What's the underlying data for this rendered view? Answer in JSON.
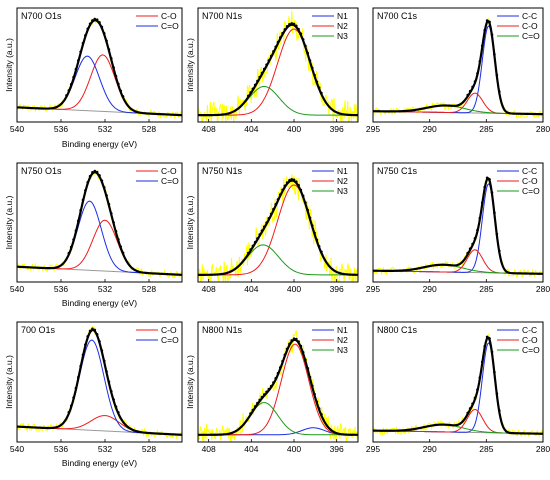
{
  "chart_data": [
    {
      "id": "n700-o1s",
      "type": "line",
      "title": "N700 O1s",
      "xlabel": "Binding energy (eV)",
      "ylabel": "Intensity (a.u.)",
      "xlim": [
        540,
        525
      ],
      "xticks": [
        540,
        536,
        532,
        528
      ],
      "ylim": [
        0,
        1.1
      ],
      "legend": "top-right",
      "kind": "O",
      "peaks": [
        {
          "name": "C-O",
          "color": "#ee1c1c",
          "center": 532.2,
          "fwhm": 2.6,
          "height": 0.58
        },
        {
          "name": "C=O",
          "color": "#1c2ee6",
          "center": 533.6,
          "fwhm": 2.6,
          "height": 0.56
        }
      ],
      "background": {
        "color": "#9a9a9a",
        "start": 0.08,
        "end": 0.0
      }
    },
    {
      "id": "n700-n1s",
      "type": "line",
      "title": "N700 N1s",
      "xlabel": "",
      "ylabel": "Intensity (a.u.)",
      "xlim": [
        409,
        394
      ],
      "xticks": [
        408,
        404,
        400,
        396
      ],
      "ylim": [
        0,
        1.12
      ],
      "legend": "top-right",
      "kind": "N",
      "noise": 0.1,
      "peaks": [
        {
          "name": "N1",
          "color": "#1c2ee6",
          "center": 398.2,
          "fwhm": 2.2,
          "height": 0.0
        },
        {
          "name": "N2",
          "color": "#ee1c1c",
          "center": 400.0,
          "fwhm": 3.6,
          "height": 0.9
        },
        {
          "name": "N3",
          "color": "#1a9a1a",
          "center": 402.8,
          "fwhm": 3.3,
          "height": 0.3
        }
      ],
      "background": {
        "color": "#9a9a9a",
        "start": 0.0,
        "end": 0.0
      }
    },
    {
      "id": "n700-c1s",
      "type": "line",
      "title": "N700 C1s",
      "xlabel": "",
      "ylabel": "",
      "xlim": [
        295,
        280
      ],
      "xticks": [
        295,
        290,
        285,
        280
      ],
      "ylim": [
        0,
        1.08
      ],
      "legend": "top-right",
      "kind": "C",
      "peaks": [
        {
          "name": "C-C",
          "color": "#1c2ee6",
          "center": 284.8,
          "fwhm": 1.3,
          "height": 0.88
        },
        {
          "name": "C-O",
          "color": "#ee1c1c",
          "center": 286.0,
          "fwhm": 1.6,
          "height": 0.2
        },
        {
          "name": "C=O",
          "color": "#1a9a1a",
          "center": 288.6,
          "fwhm": 4.0,
          "height": 0.07
        }
      ],
      "background": {
        "color": "#9a9a9a",
        "start": 0.04,
        "end": 0.01
      }
    },
    {
      "id": "n750-o1s",
      "type": "line",
      "title": "N750 O1s",
      "xlabel": "Binding energy (eV)",
      "ylabel": "Intensity (a.u.)",
      "xlim": [
        540,
        525
      ],
      "xticks": [
        540,
        536,
        532,
        528
      ],
      "ylim": [
        0,
        1.1
      ],
      "legend": "top-right",
      "kind": "O",
      "peaks": [
        {
          "name": "C-O",
          "color": "#ee1c1c",
          "center": 532.0,
          "fwhm": 2.6,
          "height": 0.5
        },
        {
          "name": "C=O",
          "color": "#1c2ee6",
          "center": 533.4,
          "fwhm": 2.5,
          "height": 0.68
        }
      ],
      "background": {
        "color": "#9a9a9a",
        "start": 0.08,
        "end": 0.0
      }
    },
    {
      "id": "n750-n1s",
      "type": "line",
      "title": "N750 N1s",
      "xlabel": "",
      "ylabel": "Intensity (a.u.)",
      "xlim": [
        409,
        394
      ],
      "xticks": [
        408,
        404,
        400,
        396
      ],
      "ylim": [
        0,
        1.12
      ],
      "legend": "top-right",
      "kind": "N",
      "noise": 0.1,
      "peaks": [
        {
          "name": "N1",
          "color": "#1c2ee6",
          "center": 398.2,
          "fwhm": 2.2,
          "height": 0.0
        },
        {
          "name": "N2",
          "color": "#ee1c1c",
          "center": 400.0,
          "fwhm": 3.6,
          "height": 0.9
        },
        {
          "name": "N3",
          "color": "#1a9a1a",
          "center": 402.9,
          "fwhm": 3.4,
          "height": 0.3
        }
      ],
      "background": {
        "color": "#9a9a9a",
        "start": 0.0,
        "end": 0.0
      }
    },
    {
      "id": "n750-c1s",
      "type": "line",
      "title": "N750 C1s",
      "xlabel": "",
      "ylabel": "",
      "xlim": [
        295,
        280
      ],
      "xticks": [
        295,
        290,
        285,
        280
      ],
      "ylim": [
        0,
        1.08
      ],
      "legend": "top-right",
      "kind": "C",
      "peaks": [
        {
          "name": "C-C",
          "color": "#1c2ee6",
          "center": 284.8,
          "fwhm": 1.3,
          "height": 0.86
        },
        {
          "name": "C-O",
          "color": "#ee1c1c",
          "center": 286.0,
          "fwhm": 1.6,
          "height": 0.22
        },
        {
          "name": "C=O",
          "color": "#1a9a1a",
          "center": 288.8,
          "fwhm": 4.0,
          "height": 0.07
        }
      ],
      "background": {
        "color": "#9a9a9a",
        "start": 0.04,
        "end": 0.01
      }
    },
    {
      "id": "700-o1s",
      "type": "line",
      "title": "700 O1s",
      "xlabel": "Binding energy (eV)",
      "ylabel": "Intensity (a.u.)",
      "xlim": [
        540,
        525
      ],
      "xticks": [
        540,
        536,
        532,
        528
      ],
      "ylim": [
        0,
        1.1
      ],
      "legend": "top-right",
      "kind": "O",
      "peaks": [
        {
          "name": "C-O",
          "color": "#ee1c1c",
          "center": 532.0,
          "fwhm": 3.0,
          "height": 0.15
        },
        {
          "name": "C=O",
          "color": "#1c2ee6",
          "center": 533.2,
          "fwhm": 2.6,
          "height": 0.88
        }
      ],
      "background": {
        "color": "#9a9a9a",
        "start": 0.08,
        "end": 0.0
      }
    },
    {
      "id": "n800-n1s",
      "type": "line",
      "title": "N800 N1s",
      "xlabel": "",
      "ylabel": "Intensity (a.u.)",
      "xlim": [
        409,
        394
      ],
      "xticks": [
        408,
        404,
        400,
        396
      ],
      "ylim": [
        0,
        1.12
      ],
      "legend": "top-right",
      "kind": "N",
      "noise": 0.08,
      "peaks": [
        {
          "name": "N1",
          "color": "#1c2ee6",
          "center": 398.2,
          "fwhm": 2.5,
          "height": 0.07
        },
        {
          "name": "N2",
          "color": "#ee1c1c",
          "center": 399.9,
          "fwhm": 3.0,
          "height": 0.9
        },
        {
          "name": "N3",
          "color": "#1a9a1a",
          "center": 402.8,
          "fwhm": 3.0,
          "height": 0.32
        }
      ],
      "background": {
        "color": "#9a9a9a",
        "start": 0.0,
        "end": 0.0
      }
    },
    {
      "id": "n800-c1s",
      "type": "line",
      "title": "N800 C1s",
      "xlabel": "",
      "ylabel": "",
      "xlim": [
        295,
        280
      ],
      "xticks": [
        295,
        290,
        285,
        280
      ],
      "ylim": [
        0,
        1.08
      ],
      "legend": "top-right",
      "kind": "C",
      "peaks": [
        {
          "name": "C-C",
          "color": "#1c2ee6",
          "center": 284.8,
          "fwhm": 1.3,
          "height": 0.86
        },
        {
          "name": "C-O",
          "color": "#ee1c1c",
          "center": 286.0,
          "fwhm": 1.6,
          "height": 0.22
        },
        {
          "name": "C=O",
          "color": "#1a9a1a",
          "center": 288.8,
          "fwhm": 4.0,
          "height": 0.07
        }
      ],
      "background": {
        "color": "#9a9a9a",
        "start": 0.04,
        "end": 0.01
      }
    }
  ],
  "colors": {
    "raw_data": "#ffff00",
    "fit_envelope": "#000000",
    "dots": "#000000"
  }
}
